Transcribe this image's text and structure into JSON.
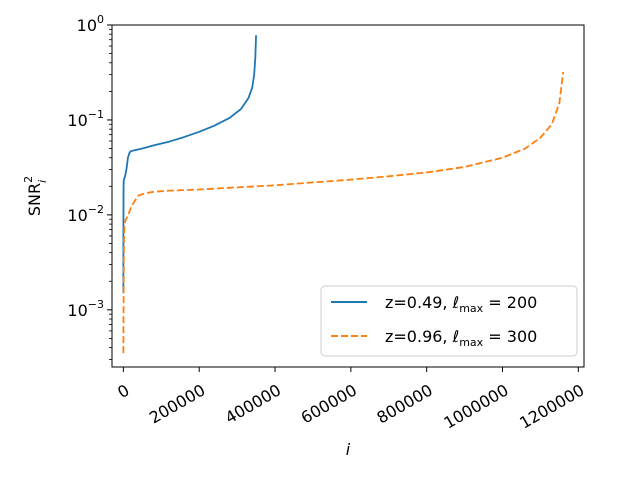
{
  "chart_data": {
    "type": "line",
    "title": "",
    "xlabel": "i",
    "ylabel_main": "SNR",
    "ylabel_sup": "2",
    "ylabel_sub": "i",
    "yscale": "log",
    "xlim": [
      -30000,
      1215000
    ],
    "ylim": [
      0.00025,
      1.0
    ],
    "x_ticks": [
      0,
      200000,
      400000,
      600000,
      800000,
      1000000,
      1200000
    ],
    "x_tick_labels": [
      "0",
      "200000",
      "400000",
      "600000",
      "800000",
      "1000000",
      "1200000"
    ],
    "y_ticks": [
      0.001,
      0.01,
      0.1,
      1
    ],
    "y_tick_labels": [
      {
        "base": "10",
        "exp": "−3"
      },
      {
        "base": "10",
        "exp": "−2"
      },
      {
        "base": "10",
        "exp": "−1"
      },
      {
        "base": "10",
        "exp": "0"
      }
    ],
    "grid": false,
    "legend_position": "lower right",
    "series": [
      {
        "name_prefix": "z=0.49, ",
        "name_math": "max",
        "name_value": "200",
        "color": "#1f77b4",
        "dash": "solid",
        "x": [
          0,
          50,
          200,
          500,
          1000,
          2000,
          4000,
          8000,
          12000,
          16000,
          20000,
          30000,
          50000,
          80000,
          120000,
          160000,
          200000,
          240000,
          280000,
          310000,
          330000,
          340000,
          345000,
          348000,
          350000
        ],
        "y": [
          0.0015,
          0.004,
          0.01,
          0.02,
          0.023,
          0.024,
          0.025,
          0.03,
          0.04,
          0.045,
          0.047,
          0.048,
          0.05,
          0.054,
          0.059,
          0.066,
          0.075,
          0.087,
          0.105,
          0.13,
          0.17,
          0.22,
          0.3,
          0.45,
          0.78
        ]
      },
      {
        "name_prefix": "z=0.96, ",
        "name_math": "max",
        "name_value": "300",
        "color": "#ff7f0e",
        "dash": "dashed",
        "x": [
          0,
          300,
          800,
          1500,
          3000,
          6000,
          10000,
          15000,
          20000,
          30000,
          40000,
          60000,
          80000,
          120000,
          200000,
          300000,
          400000,
          500000,
          600000,
          700000,
          800000,
          900000,
          1000000,
          1060000,
          1100000,
          1130000,
          1150000,
          1160000
        ],
        "y": [
          0.00035,
          0.0008,
          0.002,
          0.005,
          0.008,
          0.0088,
          0.0095,
          0.0105,
          0.012,
          0.014,
          0.016,
          0.017,
          0.0175,
          0.018,
          0.0185,
          0.0195,
          0.0205,
          0.022,
          0.0235,
          0.0255,
          0.028,
          0.032,
          0.04,
          0.05,
          0.065,
          0.09,
          0.15,
          0.32
        ]
      }
    ]
  }
}
